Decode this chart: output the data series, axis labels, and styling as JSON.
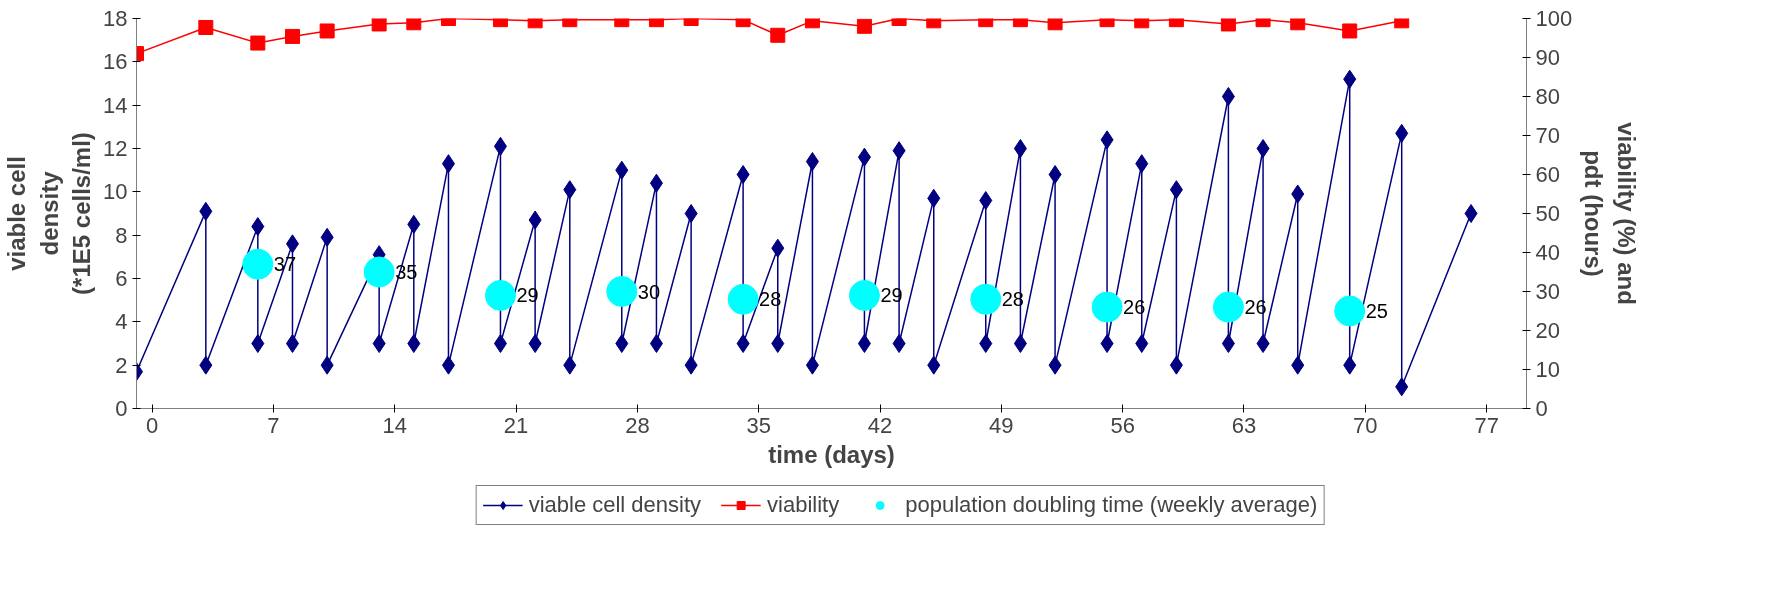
{
  "chart_data": {
    "type": "line",
    "xlabel": "time (days)",
    "ylabel": "viable cell\ndensity\n(*1E5 cells/ml)",
    "y2label": "viability (%) and\npdt (hours)",
    "xlim": [
      -0.9,
      79.3
    ],
    "xticks": [
      0,
      7,
      14,
      21,
      28,
      35,
      42,
      49,
      56,
      63,
      70,
      77
    ],
    "ylim": [
      0,
      18
    ],
    "yticks": [
      0,
      2,
      4,
      6,
      8,
      10,
      12,
      14,
      16,
      18
    ],
    "y2lim": [
      0,
      100
    ],
    "y2ticks": [
      0,
      10,
      20,
      30,
      40,
      50,
      60,
      70,
      80,
      90,
      100
    ],
    "grid": false,
    "legend": "bottom",
    "series": [
      {
        "name": "viable cell density",
        "marker": "diamond",
        "color": "#000080",
        "x": [
          -0.9,
          3.1,
          3.1,
          6.1,
          6.1,
          8.1,
          8.1,
          10.1,
          10.1,
          13.1,
          13.1,
          15.1,
          15.1,
          17.1,
          17.1,
          20.1,
          20.1,
          22.1,
          22.1,
          24.1,
          24.1,
          27.1,
          27.1,
          29.1,
          29.1,
          31.1,
          31.1,
          34.1,
          34.1,
          36.1,
          36.1,
          38.1,
          38.1,
          41.1,
          41.1,
          43.1,
          43.1,
          45.1,
          45.1,
          48.1,
          48.1,
          50.1,
          50.1,
          52.1,
          52.1,
          55.1,
          55.1,
          57.1,
          57.1,
          59.1,
          59.1,
          62.1,
          62.1,
          64.1,
          64.1,
          66.1,
          66.1,
          69.1,
          69.1,
          72.1,
          72.1,
          76.1
        ],
        "values": [
          1.7,
          9.1,
          2.0,
          8.4,
          3.0,
          7.6,
          3.0,
          7.9,
          2.0,
          7.1,
          3.0,
          8.5,
          3.0,
          11.3,
          2.0,
          12.1,
          3.0,
          8.7,
          3.0,
          10.1,
          2.0,
          11.0,
          3.0,
          10.4,
          3.0,
          9.0,
          2.0,
          10.8,
          3.0,
          7.4,
          3.0,
          11.4,
          2.0,
          11.6,
          3.0,
          11.9,
          3.0,
          9.7,
          2.0,
          9.6,
          3.0,
          12.0,
          3.0,
          10.8,
          2.0,
          12.4,
          3.0,
          11.3,
          3.0,
          10.1,
          2.0,
          14.4,
          3.0,
          12.0,
          3.0,
          9.9,
          2.0,
          15.2,
          2.0,
          12.7,
          1.0,
          9.0
        ]
      },
      {
        "name": "viability",
        "marker": "square",
        "axis": "y2",
        "color": "#ff0000",
        "x": [
          -0.9,
          3.1,
          6.1,
          8.1,
          10.1,
          13.1,
          15.1,
          17.1,
          20.1,
          22.1,
          24.1,
          27.1,
          29.1,
          31.1,
          34.1,
          36.1,
          38.1,
          41.1,
          43.1,
          45.1,
          48.1,
          50.1,
          52.1,
          55.1,
          57.1,
          59.1,
          62.1,
          64.1,
          66.1,
          69.1,
          72.1
        ],
        "values": [
          91,
          97.7,
          93.7,
          95.4,
          96.8,
          98.6,
          98.9,
          100,
          99.7,
          99.4,
          99.7,
          99.7,
          99.7,
          100,
          99.7,
          95.7,
          99.4,
          98,
          100,
          99.4,
          99.7,
          99.7,
          98.9,
          99.7,
          99.4,
          99.7,
          98.6,
          99.7,
          98.9,
          96.8,
          99.4
        ]
      },
      {
        "name": "population doubling time (weekly average)",
        "type": "scatter",
        "marker": "circle",
        "axis": "y2",
        "color": "#00ffff",
        "x": [
          6.1,
          13.1,
          20.1,
          27.1,
          34.1,
          41.1,
          48.1,
          55.1,
          62.1,
          69.1
        ],
        "values": [
          37,
          35,
          29,
          30,
          28,
          29,
          28,
          26,
          26,
          25
        ],
        "value_labels": [
          "37",
          "35",
          "29",
          "30",
          "28",
          "29",
          "28",
          "26",
          "26",
          "25"
        ]
      }
    ]
  }
}
